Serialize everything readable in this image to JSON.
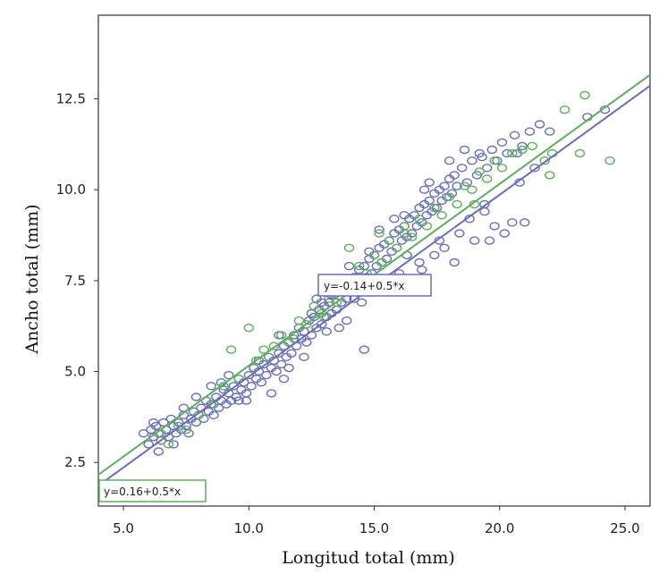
{
  "chart_data": {
    "type": "scatter",
    "title": "",
    "xlabel": "Longitud total (mm)",
    "ylabel": "Ancho total (mm)",
    "xlim": [
      4.0,
      26.0
    ],
    "ylim": [
      1.3,
      14.8
    ],
    "x_ticks": [
      5.0,
      10.0,
      15.0,
      20.0,
      25.0
    ],
    "x_tick_labels": [
      "5.0",
      "10.0",
      "15.0",
      "20.0",
      "25.0"
    ],
    "y_ticks": [
      2.5,
      5.0,
      7.5,
      10.0,
      12.5
    ],
    "y_tick_labels": [
      "2.5",
      "5.0",
      "7.5",
      "10.0",
      "12.5"
    ],
    "grid": false,
    "series": [
      {
        "name": "blue",
        "color": "#6a6fb8",
        "fit_equation": "y=-0.14+0.5*x",
        "fit_line": {
          "intercept": -0.14,
          "slope": 0.5,
          "x_range": [
            4.0,
            26.0
          ]
        },
        "points": [
          [
            5.8,
            3.3
          ],
          [
            6.0,
            3.0
          ],
          [
            6.1,
            3.4
          ],
          [
            6.2,
            3.2
          ],
          [
            6.3,
            3.5
          ],
          [
            6.4,
            3.3
          ],
          [
            6.5,
            3.1
          ],
          [
            6.6,
            3.6
          ],
          [
            6.7,
            3.4
          ],
          [
            6.8,
            3.2
          ],
          [
            6.9,
            3.7
          ],
          [
            7.0,
            3.5
          ],
          [
            7.1,
            3.3
          ],
          [
            7.2,
            3.6
          ],
          [
            7.3,
            3.4
          ],
          [
            7.4,
            3.8
          ],
          [
            7.5,
            3.5
          ],
          [
            7.6,
            3.3
          ],
          [
            7.7,
            3.7
          ],
          [
            7.8,
            3.9
          ],
          [
            7.9,
            3.6
          ],
          [
            8.0,
            3.8
          ],
          [
            8.1,
            4.0
          ],
          [
            8.2,
            3.7
          ],
          [
            8.3,
            4.2
          ],
          [
            8.4,
            3.9
          ],
          [
            8.5,
            4.1
          ],
          [
            8.6,
            3.8
          ],
          [
            8.7,
            4.3
          ],
          [
            8.8,
            4.0
          ],
          [
            8.9,
            4.2
          ],
          [
            9.0,
            4.5
          ],
          [
            9.1,
            4.1
          ],
          [
            9.2,
            4.4
          ],
          [
            9.3,
            4.2
          ],
          [
            9.4,
            4.6
          ],
          [
            9.5,
            4.3
          ],
          [
            9.6,
            4.8
          ],
          [
            9.7,
            4.5
          ],
          [
            9.8,
            4.7
          ],
          [
            9.9,
            4.4
          ],
          [
            10.0,
            4.9
          ],
          [
            10.1,
            4.6
          ],
          [
            10.2,
            5.1
          ],
          [
            10.3,
            4.8
          ],
          [
            10.4,
            5.0
          ],
          [
            10.5,
            4.7
          ],
          [
            10.6,
            5.2
          ],
          [
            10.7,
            4.9
          ],
          [
            10.8,
            5.4
          ],
          [
            10.9,
            5.1
          ],
          [
            11.0,
            5.3
          ],
          [
            11.1,
            5.0
          ],
          [
            11.2,
            5.5
          ],
          [
            11.3,
            5.2
          ],
          [
            11.4,
            5.7
          ],
          [
            11.5,
            5.4
          ],
          [
            11.6,
            5.8
          ],
          [
            11.7,
            5.5
          ],
          [
            11.8,
            6.0
          ],
          [
            11.9,
            5.7
          ],
          [
            12.0,
            6.2
          ],
          [
            12.1,
            5.9
          ],
          [
            12.2,
            6.1
          ],
          [
            12.3,
            5.8
          ],
          [
            12.4,
            6.4
          ],
          [
            12.5,
            6.0
          ],
          [
            12.6,
            6.5
          ],
          [
            12.7,
            6.2
          ],
          [
            12.8,
            6.7
          ],
          [
            12.9,
            6.3
          ],
          [
            13.0,
            6.8
          ],
          [
            13.1,
            6.5
          ],
          [
            13.2,
            6.9
          ],
          [
            13.3,
            6.6
          ],
          [
            13.4,
            7.1
          ],
          [
            13.5,
            6.7
          ],
          [
            13.6,
            7.2
          ],
          [
            13.7,
            6.9
          ],
          [
            13.8,
            7.4
          ],
          [
            13.9,
            7.0
          ],
          [
            14.0,
            7.5
          ],
          [
            14.1,
            7.2
          ],
          [
            14.2,
            7.6
          ],
          [
            14.3,
            7.3
          ],
          [
            14.4,
            7.8
          ],
          [
            14.5,
            7.4
          ],
          [
            14.6,
            7.9
          ],
          [
            14.7,
            7.6
          ],
          [
            14.8,
            8.1
          ],
          [
            14.9,
            7.7
          ],
          [
            15.0,
            8.2
          ],
          [
            15.1,
            7.9
          ],
          [
            15.2,
            8.4
          ],
          [
            15.3,
            8.0
          ],
          [
            15.4,
            8.5
          ],
          [
            15.5,
            8.1
          ],
          [
            15.6,
            8.6
          ],
          [
            15.7,
            8.3
          ],
          [
            15.8,
            8.8
          ],
          [
            15.9,
            8.4
          ],
          [
            16.0,
            8.9
          ],
          [
            16.1,
            8.6
          ],
          [
            16.2,
            9.0
          ],
          [
            16.3,
            8.7
          ],
          [
            16.4,
            9.2
          ],
          [
            16.5,
            8.8
          ],
          [
            16.6,
            9.3
          ],
          [
            16.7,
            9.0
          ],
          [
            16.8,
            9.5
          ],
          [
            16.9,
            9.1
          ],
          [
            17.0,
            9.6
          ],
          [
            17.1,
            9.3
          ],
          [
            17.2,
            9.7
          ],
          [
            17.3,
            9.4
          ],
          [
            17.4,
            9.9
          ],
          [
            17.5,
            9.5
          ],
          [
            17.6,
            10.0
          ],
          [
            17.7,
            9.7
          ],
          [
            17.8,
            10.1
          ],
          [
            17.9,
            9.8
          ],
          [
            18.0,
            10.3
          ],
          [
            18.1,
            9.9
          ],
          [
            18.2,
            10.4
          ],
          [
            18.3,
            10.1
          ],
          [
            18.5,
            10.6
          ],
          [
            18.7,
            10.2
          ],
          [
            18.9,
            10.8
          ],
          [
            19.1,
            10.4
          ],
          [
            19.3,
            10.9
          ],
          [
            19.5,
            10.6
          ],
          [
            19.7,
            11.1
          ],
          [
            19.9,
            10.8
          ],
          [
            20.1,
            11.3
          ],
          [
            20.3,
            11.0
          ],
          [
            20.6,
            11.5
          ],
          [
            20.9,
            11.2
          ],
          [
            21.2,
            11.6
          ],
          [
            21.6,
            11.8
          ],
          [
            22.0,
            11.6
          ],
          [
            18.4,
            8.8
          ],
          [
            18.8,
            9.2
          ],
          [
            19.0,
            8.6
          ],
          [
            19.4,
            9.4
          ],
          [
            19.8,
            9.0
          ],
          [
            20.2,
            8.8
          ],
          [
            20.5,
            9.1
          ],
          [
            21.0,
            9.1
          ],
          [
            17.8,
            8.4
          ],
          [
            17.4,
            8.2
          ],
          [
            16.8,
            8.0
          ],
          [
            16.3,
            8.2
          ],
          [
            14.2,
            7.0
          ],
          [
            14.6,
            5.6
          ],
          [
            13.9,
            6.4
          ],
          [
            13.6,
            6.2
          ],
          [
            12.2,
            5.4
          ],
          [
            11.4,
            4.8
          ],
          [
            10.9,
            4.4
          ],
          [
            9.6,
            4.2
          ],
          [
            15.6,
            7.4
          ],
          [
            16.9,
            7.8
          ],
          [
            18.2,
            8.0
          ],
          [
            19.6,
            8.6
          ],
          [
            12.7,
            7.0
          ],
          [
            14.0,
            7.9
          ],
          [
            15.2,
            8.9
          ],
          [
            16.2,
            9.3
          ],
          [
            17.2,
            10.2
          ],
          [
            18.0,
            10.8
          ],
          [
            19.2,
            11.0
          ],
          [
            20.7,
            11.0
          ],
          [
            21.4,
            10.6
          ],
          [
            23.5,
            12.0
          ],
          [
            24.2,
            12.2
          ],
          [
            8.5,
            4.6
          ],
          [
            7.9,
            4.3
          ],
          [
            7.4,
            4.0
          ],
          [
            9.2,
            4.9
          ],
          [
            10.4,
            5.3
          ],
          [
            11.2,
            6.0
          ],
          [
            12.5,
            6.6
          ],
          [
            13.3,
            7.1
          ],
          [
            14.8,
            8.3
          ],
          [
            15.8,
            9.2
          ],
          [
            17.0,
            10.0
          ],
          [
            18.6,
            11.1
          ],
          [
            6.4,
            2.8
          ],
          [
            7.0,
            3.0
          ],
          [
            9.9,
            4.2
          ],
          [
            11.6,
            5.1
          ],
          [
            13.1,
            6.1
          ],
          [
            14.5,
            6.9
          ],
          [
            16.0,
            7.7
          ],
          [
            17.6,
            8.6
          ],
          [
            19.4,
            9.6
          ],
          [
            20.8,
            10.2
          ],
          [
            6.2,
            3.6
          ],
          [
            8.9,
            4.7
          ],
          [
            12.9,
            6.9
          ]
        ]
      },
      {
        "name": "green",
        "color": "#5fad5f",
        "fit_equation": "y=0.16+0.5*x",
        "fit_line": {
          "intercept": 0.16,
          "slope": 0.5,
          "x_range": [
            4.0,
            26.0
          ]
        },
        "points": [
          [
            6.5,
            3.3
          ],
          [
            6.8,
            3.0
          ],
          [
            7.2,
            3.5
          ],
          [
            7.5,
            3.4
          ],
          [
            8.0,
            3.8
          ],
          [
            8.6,
            4.1
          ],
          [
            9.0,
            4.6
          ],
          [
            9.3,
            5.6
          ],
          [
            9.6,
            4.8
          ],
          [
            10.0,
            6.2
          ],
          [
            10.3,
            5.3
          ],
          [
            10.6,
            5.6
          ],
          [
            11.0,
            5.7
          ],
          [
            11.3,
            6.0
          ],
          [
            11.6,
            5.8
          ],
          [
            12.0,
            6.4
          ],
          [
            12.3,
            6.3
          ],
          [
            12.6,
            6.8
          ],
          [
            12.9,
            6.6
          ],
          [
            13.2,
            7.0
          ],
          [
            13.5,
            6.9
          ],
          [
            13.8,
            7.5
          ],
          [
            14.1,
            7.3
          ],
          [
            14.4,
            7.9
          ],
          [
            14.7,
            7.7
          ],
          [
            15.0,
            8.2
          ],
          [
            15.3,
            8.0
          ],
          [
            15.6,
            8.6
          ],
          [
            15.9,
            8.4
          ],
          [
            16.2,
            8.8
          ],
          [
            16.5,
            8.7
          ],
          [
            16.8,
            9.2
          ],
          [
            17.1,
            9.0
          ],
          [
            17.4,
            9.5
          ],
          [
            17.7,
            9.3
          ],
          [
            18.0,
            9.8
          ],
          [
            18.3,
            9.6
          ],
          [
            18.6,
            10.1
          ],
          [
            18.9,
            10.0
          ],
          [
            19.2,
            10.5
          ],
          [
            19.5,
            10.3
          ],
          [
            19.8,
            10.8
          ],
          [
            20.1,
            10.6
          ],
          [
            20.5,
            11.0
          ],
          [
            20.9,
            11.1
          ],
          [
            21.3,
            11.2
          ],
          [
            21.8,
            10.8
          ],
          [
            22.1,
            11.0
          ],
          [
            22.6,
            12.2
          ],
          [
            23.4,
            12.6
          ],
          [
            22.0,
            10.4
          ],
          [
            23.2,
            11.0
          ],
          [
            24.4,
            10.8
          ],
          [
            19.0,
            9.6
          ],
          [
            14.0,
            8.4
          ],
          [
            15.2,
            8.8
          ],
          [
            16.2,
            9.0
          ],
          [
            13.0,
            6.5
          ],
          [
            11.8,
            5.9
          ],
          [
            10.8,
            5.4
          ]
        ]
      }
    ]
  }
}
